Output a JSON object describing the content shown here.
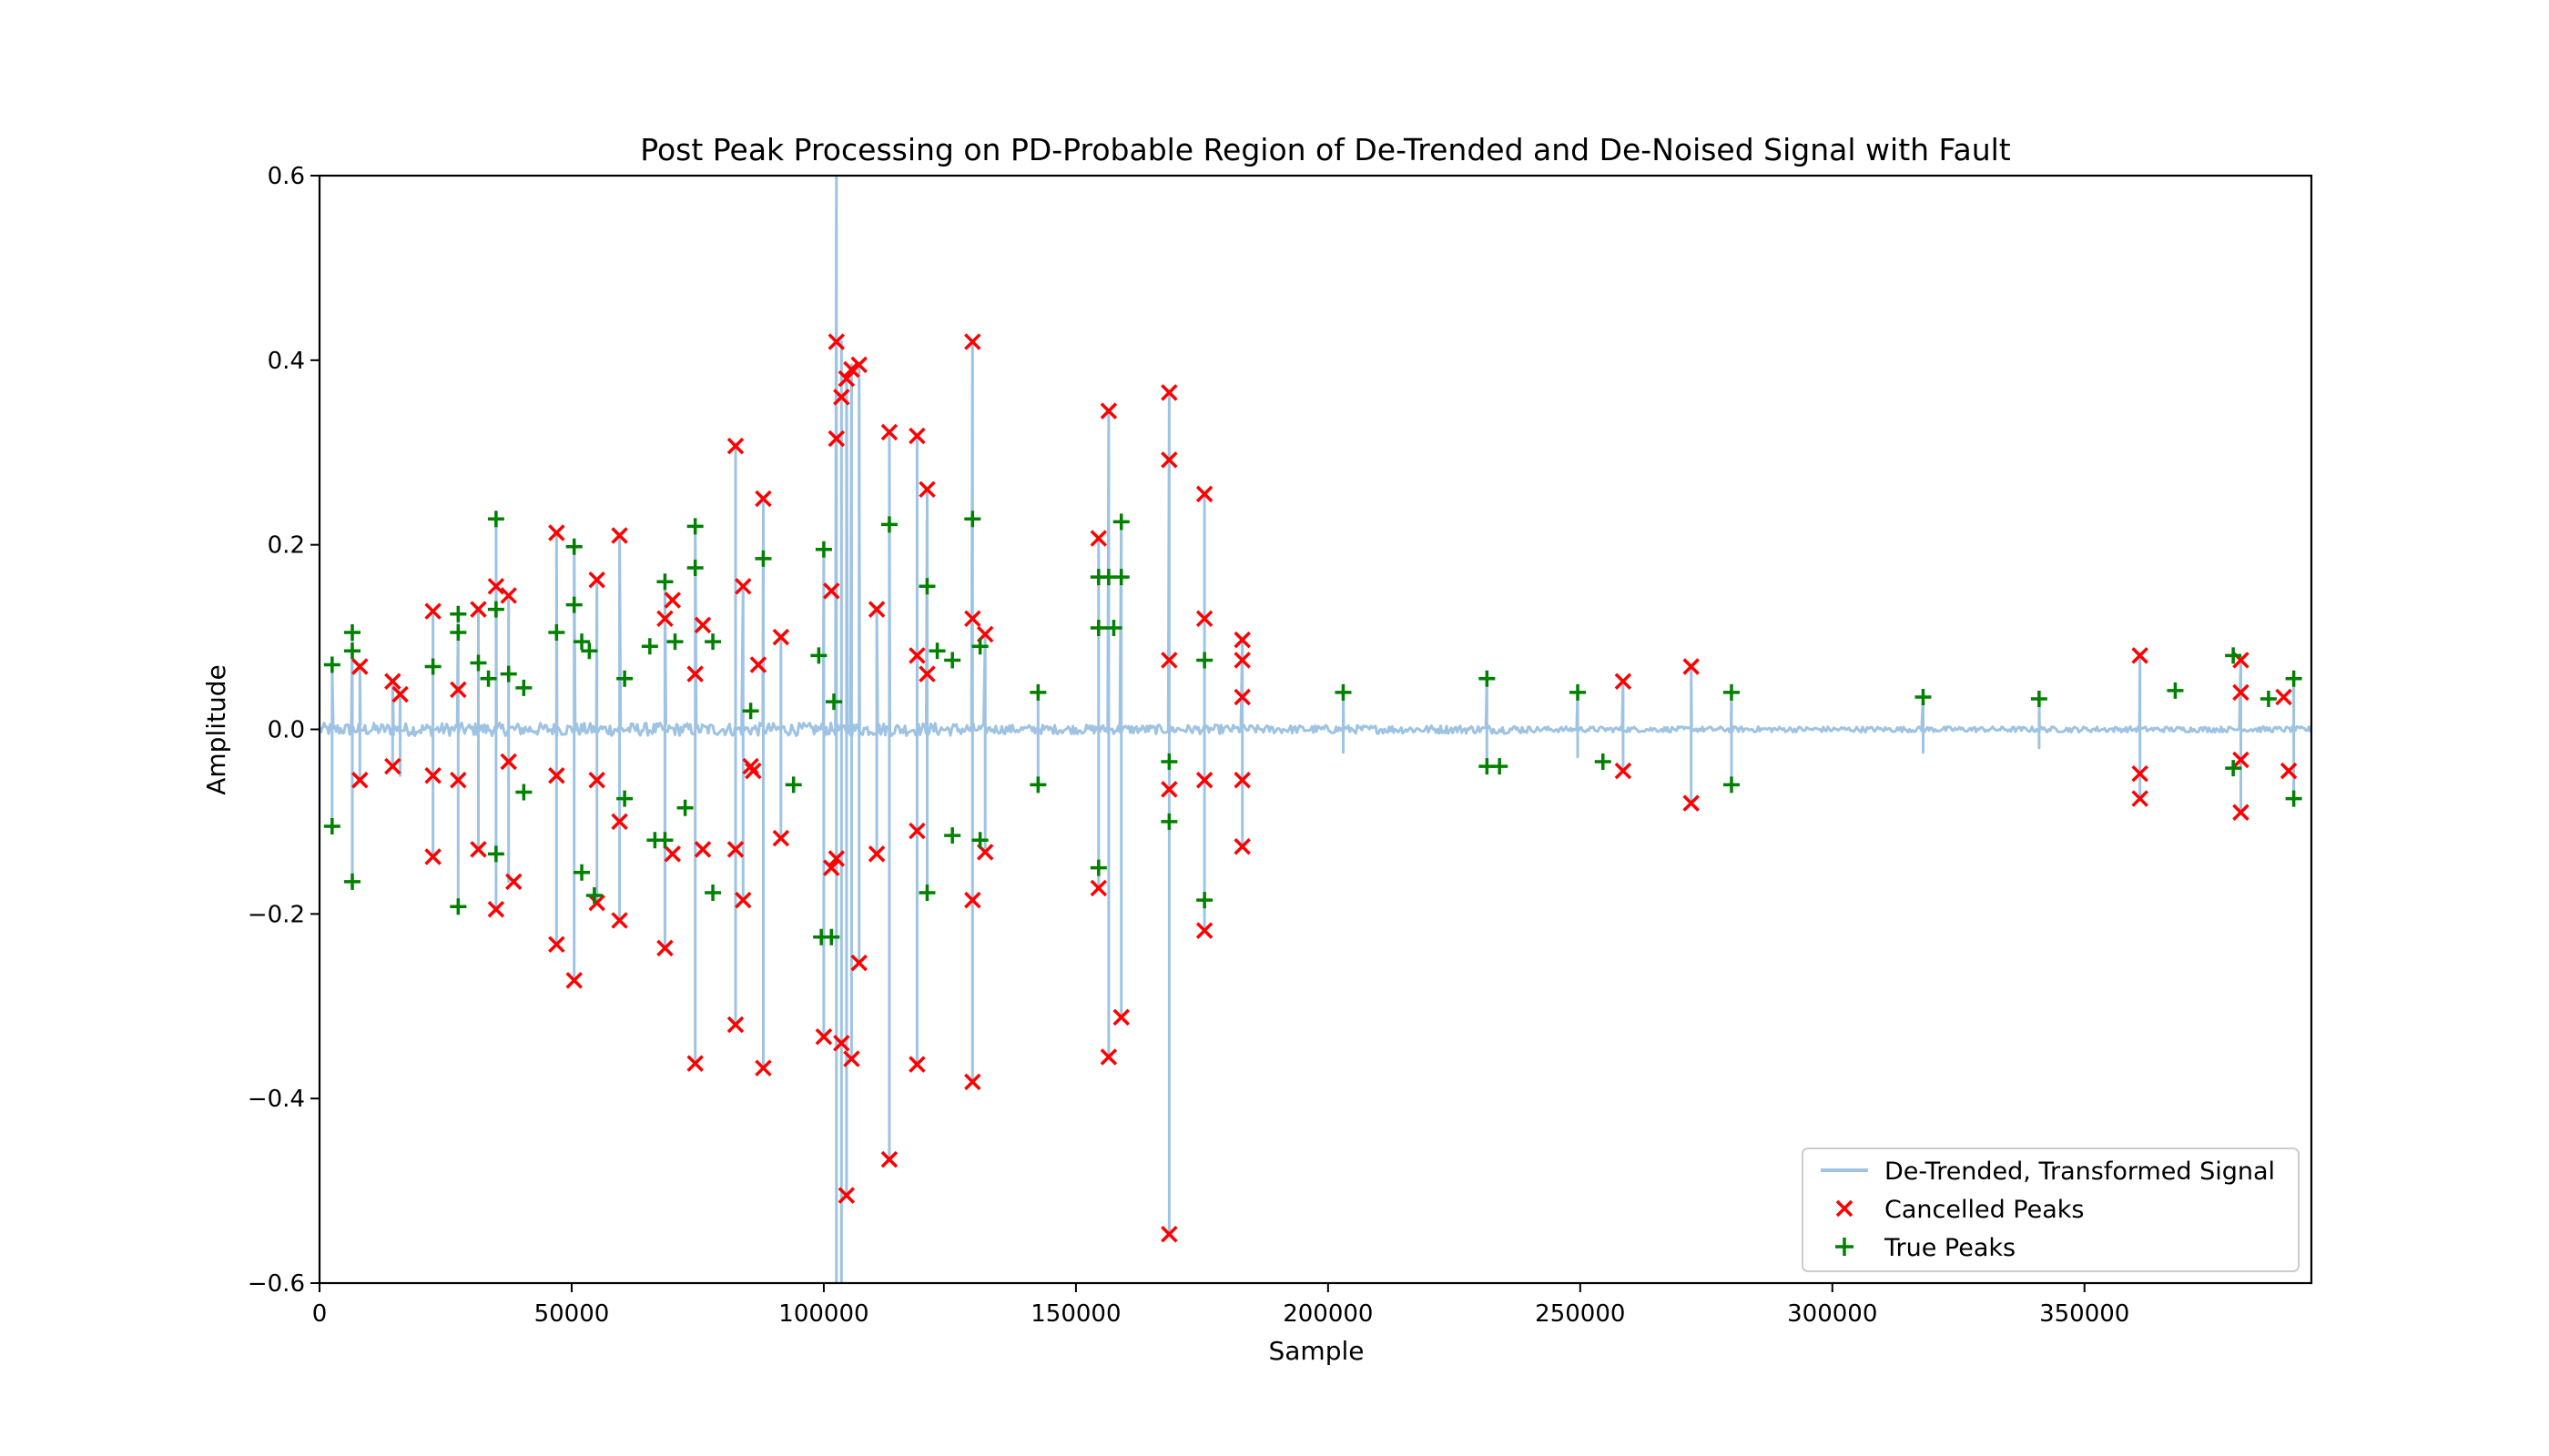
{
  "chart_data": {
    "type": "line",
    "title": "Post Peak Processing on PD-Probable Region of De-Trended and De-Noised Signal with Fault",
    "xlabel": "Sample",
    "ylabel": "Amplitude",
    "xlim": [
      0,
      395000
    ],
    "ylim": [
      -0.6,
      0.6
    ],
    "xticks": [
      0,
      50000,
      100000,
      150000,
      200000,
      250000,
      300000,
      350000
    ],
    "yticks": [
      -0.6,
      -0.4,
      -0.2,
      0.0,
      0.2,
      0.4,
      0.6
    ],
    "xtick_labels": [
      "0",
      "50000",
      "100000",
      "150000",
      "200000",
      "250000",
      "300000",
      "350000"
    ],
    "ytick_labels": [
      "−0.6",
      "−0.4",
      "−0.2",
      "0.0",
      "0.2",
      "0.4",
      "0.6"
    ],
    "grid": false,
    "legend_position": "bottom-right",
    "series": [
      {
        "name": "De-Trended, Transformed Signal",
        "kind": "line",
        "color": "#9fc3e2",
        "spikes": [
          [
            2500,
            0.07,
            -0.105
          ],
          [
            6500,
            0.105,
            -0.165
          ],
          [
            8000,
            0.07,
            -0.055
          ],
          [
            14500,
            0.05,
            -0.04
          ],
          [
            16000,
            0.04,
            -0.05
          ],
          [
            22500,
            0.128,
            -0.138
          ],
          [
            27500,
            0.125,
            -0.192
          ],
          [
            31500,
            0.13,
            -0.13
          ],
          [
            35000,
            0.228,
            -0.195
          ],
          [
            37500,
            0.145,
            -0.165
          ],
          [
            47000,
            0.213,
            -0.233
          ],
          [
            50500,
            0.198,
            -0.272
          ],
          [
            55000,
            0.162,
            -0.188
          ],
          [
            59500,
            0.21,
            -0.207
          ],
          [
            68500,
            0.16,
            -0.237
          ],
          [
            74500,
            0.22,
            -0.362
          ],
          [
            82500,
            0.307,
            -0.32
          ],
          [
            84000,
            0.155,
            -0.185
          ],
          [
            88000,
            0.25,
            -0.367
          ],
          [
            91500,
            0.1,
            -0.118
          ],
          [
            100000,
            0.195,
            -0.333
          ],
          [
            102500,
            0.6,
            -0.6
          ],
          [
            103500,
            0.42,
            -0.6
          ],
          [
            104500,
            0.38,
            -0.505
          ],
          [
            105500,
            0.395,
            -0.357
          ],
          [
            107000,
            0.395,
            -0.253
          ],
          [
            110500,
            0.13,
            -0.135
          ],
          [
            113000,
            0.322,
            -0.466
          ],
          [
            118500,
            0.318,
            -0.363
          ],
          [
            120500,
            0.26,
            -0.175
          ],
          [
            129500,
            0.42,
            -0.382
          ],
          [
            132000,
            0.103,
            -0.133
          ],
          [
            142500,
            0.04,
            -0.06
          ],
          [
            154500,
            0.207,
            -0.172
          ],
          [
            156500,
            0.345,
            -0.355
          ],
          [
            159000,
            0.225,
            -0.312
          ],
          [
            168500,
            0.365,
            -0.547
          ],
          [
            175500,
            0.255,
            -0.218
          ],
          [
            183000,
            0.097,
            -0.127
          ],
          [
            203000,
            0.04,
            -0.025
          ],
          [
            231500,
            0.055,
            -0.04
          ],
          [
            249500,
            0.04,
            -0.03
          ],
          [
            258500,
            0.052,
            -0.045
          ],
          [
            272000,
            0.068,
            -0.08
          ],
          [
            280000,
            0.04,
            -0.06
          ],
          [
            318000,
            0.035,
            -0.025
          ],
          [
            341000,
            0.033,
            -0.02
          ],
          [
            361000,
            0.08,
            -0.075
          ],
          [
            381000,
            0.078,
            -0.09
          ],
          [
            391500,
            0.055,
            -0.075
          ]
        ]
      },
      {
        "name": "Cancelled Peaks",
        "kind": "scatter",
        "marker": "x",
        "color": "#ff0000",
        "points": [
          [
            8000,
            0.068
          ],
          [
            8000,
            -0.055
          ],
          [
            14500,
            0.052
          ],
          [
            14500,
            -0.04
          ],
          [
            16000,
            0.038
          ],
          [
            22500,
            0.128
          ],
          [
            22500,
            -0.05
          ],
          [
            22500,
            -0.138
          ],
          [
            27500,
            0.043
          ],
          [
            27500,
            -0.055
          ],
          [
            31500,
            0.13
          ],
          [
            31500,
            -0.13
          ],
          [
            35000,
            0.155
          ],
          [
            35000,
            -0.195
          ],
          [
            37500,
            0.145
          ],
          [
            37500,
            -0.035
          ],
          [
            38500,
            -0.165
          ],
          [
            47000,
            0.213
          ],
          [
            47000,
            -0.05
          ],
          [
            47000,
            -0.233
          ],
          [
            50500,
            -0.272
          ],
          [
            55000,
            0.162
          ],
          [
            55000,
            -0.055
          ],
          [
            55000,
            -0.188
          ],
          [
            59500,
            0.21
          ],
          [
            59500,
            -0.1
          ],
          [
            59500,
            -0.207
          ],
          [
            68500,
            0.12
          ],
          [
            68500,
            -0.237
          ],
          [
            70000,
            0.14
          ],
          [
            70000,
            -0.135
          ],
          [
            74500,
            0.06
          ],
          [
            74500,
            -0.362
          ],
          [
            76000,
            0.113
          ],
          [
            76000,
            -0.13
          ],
          [
            82500,
            0.307
          ],
          [
            82500,
            -0.13
          ],
          [
            82500,
            -0.32
          ],
          [
            84000,
            0.155
          ],
          [
            84000,
            -0.185
          ],
          [
            85500,
            -0.04
          ],
          [
            86000,
            -0.045
          ],
          [
            87000,
            0.07
          ],
          [
            88000,
            0.25
          ],
          [
            88000,
            -0.367
          ],
          [
            91500,
            0.1
          ],
          [
            91500,
            -0.118
          ],
          [
            100000,
            -0.333
          ],
          [
            101500,
            0.15
          ],
          [
            101500,
            -0.15
          ],
          [
            102500,
            0.42
          ],
          [
            102500,
            0.315
          ],
          [
            102500,
            -0.14
          ],
          [
            103500,
            0.36
          ],
          [
            103500,
            -0.34
          ],
          [
            104500,
            0.38
          ],
          [
            104500,
            -0.505
          ],
          [
            105500,
            0.39
          ],
          [
            105500,
            -0.357
          ],
          [
            107000,
            0.395
          ],
          [
            107000,
            -0.253
          ],
          [
            110500,
            0.13
          ],
          [
            110500,
            -0.135
          ],
          [
            113000,
            0.322
          ],
          [
            113000,
            -0.466
          ],
          [
            118500,
            0.318
          ],
          [
            118500,
            0.08
          ],
          [
            118500,
            -0.11
          ],
          [
            118500,
            -0.363
          ],
          [
            120500,
            0.26
          ],
          [
            120500,
            0.06
          ],
          [
            129500,
            0.42
          ],
          [
            129500,
            0.12
          ],
          [
            129500,
            -0.185
          ],
          [
            129500,
            -0.382
          ],
          [
            132000,
            0.103
          ],
          [
            132000,
            -0.133
          ],
          [
            154500,
            0.207
          ],
          [
            154500,
            -0.172
          ],
          [
            156500,
            0.345
          ],
          [
            156500,
            -0.355
          ],
          [
            159000,
            -0.312
          ],
          [
            168500,
            0.365
          ],
          [
            168500,
            0.292
          ],
          [
            168500,
            0.075
          ],
          [
            168500,
            -0.065
          ],
          [
            168500,
            -0.547
          ],
          [
            175500,
            0.255
          ],
          [
            175500,
            0.12
          ],
          [
            175500,
            -0.055
          ],
          [
            175500,
            -0.218
          ],
          [
            183000,
            0.097
          ],
          [
            183000,
            0.075
          ],
          [
            183000,
            0.035
          ],
          [
            183000,
            -0.055
          ],
          [
            183000,
            -0.127
          ],
          [
            258500,
            0.052
          ],
          [
            258500,
            -0.045
          ],
          [
            272000,
            0.068
          ],
          [
            272000,
            -0.08
          ],
          [
            361000,
            0.08
          ],
          [
            361000,
            -0.048
          ],
          [
            361000,
            -0.075
          ],
          [
            381000,
            0.075
          ],
          [
            381000,
            0.04
          ],
          [
            381000,
            -0.033
          ],
          [
            381000,
            -0.09
          ],
          [
            389500,
            0.035
          ],
          [
            390500,
            -0.045
          ]
        ]
      },
      {
        "name": "True Peaks",
        "kind": "scatter",
        "marker": "+",
        "color": "#008000",
        "points": [
          [
            2500,
            0.07
          ],
          [
            2500,
            -0.105
          ],
          [
            6500,
            0.105
          ],
          [
            6500,
            0.085
          ],
          [
            6500,
            -0.165
          ],
          [
            22500,
            0.068
          ],
          [
            27500,
            0.125
          ],
          [
            27500,
            0.105
          ],
          [
            27500,
            -0.192
          ],
          [
            31500,
            0.072
          ],
          [
            33500,
            0.055
          ],
          [
            35000,
            0.228
          ],
          [
            35000,
            0.13
          ],
          [
            35000,
            -0.135
          ],
          [
            37500,
            0.06
          ],
          [
            40500,
            0.045
          ],
          [
            40500,
            -0.068
          ],
          [
            47000,
            0.105
          ],
          [
            50500,
            0.198
          ],
          [
            50500,
            0.135
          ],
          [
            52000,
            0.095
          ],
          [
            52000,
            -0.155
          ],
          [
            53500,
            0.085
          ],
          [
            54500,
            -0.18
          ],
          [
            60500,
            0.055
          ],
          [
            60500,
            -0.075
          ],
          [
            65500,
            0.09
          ],
          [
            66500,
            -0.12
          ],
          [
            68500,
            0.16
          ],
          [
            68500,
            -0.12
          ],
          [
            70500,
            0.095
          ],
          [
            72500,
            -0.085
          ],
          [
            74500,
            0.22
          ],
          [
            74500,
            0.175
          ],
          [
            78000,
            0.095
          ],
          [
            78000,
            -0.177
          ],
          [
            85500,
            0.02
          ],
          [
            88000,
            0.185
          ],
          [
            94000,
            -0.06
          ],
          [
            99000,
            0.08
          ],
          [
            99500,
            -0.225
          ],
          [
            100000,
            0.195
          ],
          [
            101500,
            -0.225
          ],
          [
            102000,
            0.03
          ],
          [
            113000,
            0.222
          ],
          [
            120500,
            0.155
          ],
          [
            120500,
            -0.177
          ],
          [
            122500,
            0.085
          ],
          [
            125500,
            0.075
          ],
          [
            125500,
            -0.115
          ],
          [
            129500,
            0.228
          ],
          [
            131000,
            0.09
          ],
          [
            131000,
            -0.12
          ],
          [
            142500,
            0.04
          ],
          [
            142500,
            -0.06
          ],
          [
            154500,
            0.165
          ],
          [
            154500,
            0.11
          ],
          [
            154500,
            -0.15
          ],
          [
            156500,
            0.165
          ],
          [
            157500,
            0.11
          ],
          [
            159000,
            0.225
          ],
          [
            159000,
            0.165
          ],
          [
            168500,
            -0.035
          ],
          [
            168500,
            -0.1
          ],
          [
            175500,
            -0.185
          ],
          [
            175500,
            0.075
          ],
          [
            203000,
            0.04
          ],
          [
            231500,
            0.055
          ],
          [
            231500,
            -0.04
          ],
          [
            234000,
            -0.04
          ],
          [
            249500,
            0.04
          ],
          [
            254500,
            -0.035
          ],
          [
            280000,
            0.04
          ],
          [
            280000,
            -0.06
          ],
          [
            318000,
            0.035
          ],
          [
            341000,
            0.033
          ],
          [
            368000,
            0.042
          ],
          [
            379500,
            0.08
          ],
          [
            379500,
            -0.042
          ],
          [
            386500,
            0.033
          ],
          [
            391500,
            0.055
          ],
          [
            391500,
            -0.075
          ]
        ]
      }
    ]
  }
}
